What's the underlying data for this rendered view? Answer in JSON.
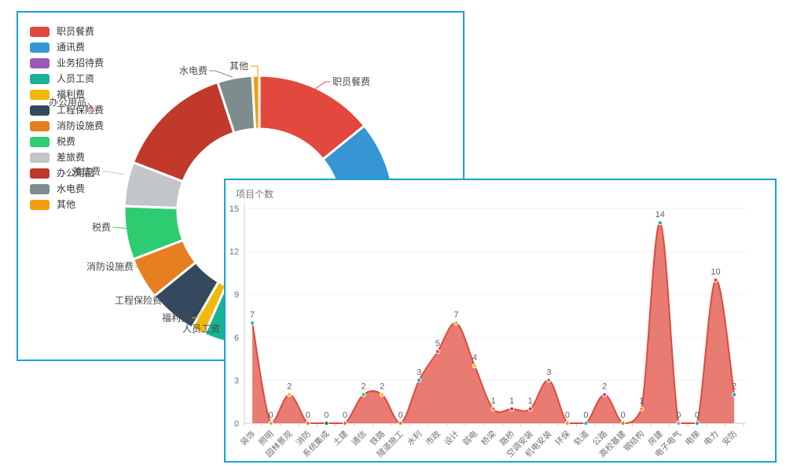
{
  "app": {
    "background": "#ffffff",
    "panel_border_color": "#18a3d8"
  },
  "chart_data": [
    {
      "type": "pie",
      "title": "",
      "donut": true,
      "legend_position": "left",
      "slices": [
        {
          "label": "职员餐费",
          "color": "#e2483d",
          "sweep_deg": 51
        },
        {
          "label": "通讯费",
          "color": "#3596d3",
          "sweep_deg": 59
        },
        {
          "label": "业务招待费",
          "color": "#9b59b6",
          "sweep_deg": 40
        },
        {
          "label": "人员工资",
          "color": "#18b295",
          "sweep_deg": 54
        },
        {
          "label": "福利费",
          "color": "#f0b90d",
          "sweep_deg": 6
        },
        {
          "label": "工程保险费",
          "color": "#34495e",
          "sweep_deg": 21
        },
        {
          "label": "消防设施费",
          "color": "#e67e22",
          "sweep_deg": 18
        },
        {
          "label": "税费",
          "color": "#2ecc71",
          "sweep_deg": 23
        },
        {
          "label": "差旅费",
          "color": "#c2c6ca",
          "sweep_deg": 19
        },
        {
          "label": "办公用品",
          "color": "#c0392b",
          "sweep_deg": 51
        },
        {
          "label": "水电费",
          "color": "#7f8c8d",
          "sweep_deg": 15
        },
        {
          "label": "其他",
          "color": "#f39c12",
          "sweep_deg": 3
        }
      ],
      "callouts": [
        {
          "label": "职员餐费",
          "line": [
            [
              375,
              99
            ],
            [
              391,
              88
            ],
            [
              397,
              88
            ]
          ],
          "text": [
            400,
            88
          ],
          "anchor": "start"
        },
        {
          "label": "其他",
          "line": [
            [
              305,
              96
            ],
            [
              305,
              68
            ],
            [
              296,
              68
            ]
          ],
          "text": [
            293,
            68
          ],
          "anchor": "end"
        },
        {
          "label": "水电费",
          "line": [
            [
              273,
              82
            ],
            [
              251,
              74
            ],
            [
              243,
              74
            ]
          ],
          "text": [
            241,
            74
          ],
          "anchor": "end"
        },
        {
          "label": "办公用品",
          "line": [
            [
              97,
              126
            ],
            [
              89,
              115
            ]
          ],
          "text": [
            87,
            114
          ],
          "anchor": "end"
        },
        {
          "label": "差旅费",
          "line": [
            [
              135,
              206
            ],
            [
              113,
              202
            ],
            [
              107,
              202
            ]
          ],
          "text": [
            105,
            202
          ],
          "anchor": "end"
        },
        {
          "label": "税费",
          "line": [
            [
              140,
              275
            ],
            [
              125,
              273
            ],
            [
              120,
              273
            ]
          ],
          "text": [
            118,
            273
          ],
          "anchor": "end"
        },
        {
          "label": "消防设施费",
          "line": [
            [
              173,
              329
            ],
            [
              155,
              323
            ],
            [
              149,
              323
            ]
          ],
          "text": [
            147,
            323
          ],
          "anchor": "end"
        },
        {
          "label": "工程保险费",
          "line": [
            [
              209,
              372
            ],
            [
              191,
              366
            ],
            [
              185,
              366
            ]
          ],
          "text": [
            183,
            366
          ],
          "anchor": "end"
        },
        {
          "label": "福利费",
          "line": [
            [
              235,
              377
            ],
            [
              229,
              388
            ],
            [
              221,
              388
            ]
          ],
          "text": [
            219,
            388
          ],
          "anchor": "end"
        },
        {
          "label": "人员工资",
          "line": [
            [
              274,
              404
            ],
            [
              263,
              402
            ],
            [
              259,
              402
            ]
          ],
          "text": [
            257,
            402
          ],
          "anchor": "end"
        }
      ],
      "label_text_color": "#4a4a4a"
    },
    {
      "type": "area",
      "title": "项目个数",
      "categories": [
        "装饰",
        "照明",
        "园林景观",
        "消防",
        "系统集成",
        "土建",
        "通信",
        "铁路",
        "隧道施工",
        "水利",
        "市政",
        "设计",
        "弱电",
        "桥梁",
        "路桥",
        "空调安装",
        "机电安装",
        "环保",
        "轨道",
        "公路",
        "高校基建",
        "钢结构",
        "房建",
        "电子电气",
        "电梯",
        "电力",
        "安防"
      ],
      "values": [
        7,
        0,
        2,
        0,
        0,
        0,
        2,
        2,
        0,
        3,
        5,
        7,
        4,
        1,
        1,
        1,
        3,
        0,
        0,
        2,
        0,
        1,
        14,
        0,
        0,
        10,
        2
      ],
      "point_colors": [
        "#2cb5b0",
        "#b5c334",
        "#f6b93b",
        "#e67e22",
        "#16766c",
        "#e26b4e",
        "#2ecc71",
        "#f1c40f",
        "#e67e22",
        "#3498db",
        "#e74c3c",
        "#b5c334",
        "#f1c40f",
        "#e67e22",
        "#c0392b",
        "#c0392b",
        "#7f8c8d",
        "#f39c12",
        "#1abc9c",
        "#9b59b6",
        "#e67e22",
        "#f39c12",
        "#27ae60",
        "#95a5a6",
        "#3498db",
        "#e74c3c",
        "#3498db"
      ],
      "line_color": "#e0493c",
      "fill_color": "rgba(224,73,60,0.72)",
      "value_label_color": "#5b6066",
      "axis_line_color": "#cccccc",
      "axis_label_color": "#6e7079",
      "grid_line_color": "#edf0f6",
      "ylim": [
        0,
        15
      ],
      "yticks": [
        0,
        3,
        6,
        9,
        12,
        15
      ],
      "grid": true,
      "legend_position": "none"
    }
  ]
}
